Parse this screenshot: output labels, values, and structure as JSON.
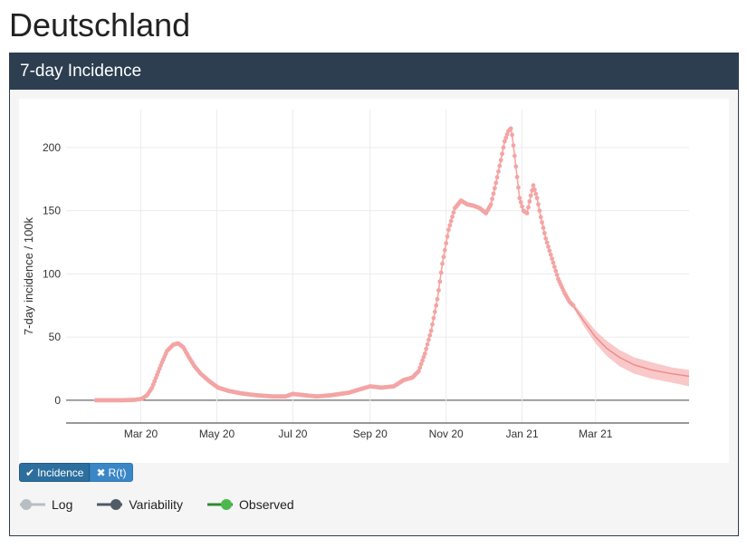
{
  "page": {
    "title": "Deutschland"
  },
  "panel": {
    "title": "7-day Incidence"
  },
  "buttons": {
    "incidence": "Incidence",
    "rt": "R(t)"
  },
  "toggles": {
    "log": "Log",
    "variability": "Variability",
    "observed": "Observed"
  },
  "colors": {
    "series": "#f4a4a4",
    "forecast_band": "#f7b6b6",
    "header": "#2c3e50",
    "toggle_off": "#b8bec4",
    "toggle_variability": "#4f5b66",
    "toggle_observed": "#2e8b2e"
  },
  "chart_data": {
    "type": "line",
    "ylabel": "7-day incidence / 100k",
    "xlabel": "",
    "ylim": [
      -18,
      230
    ],
    "yticks": [
      0,
      50,
      100,
      150,
      200
    ],
    "xlim": [
      "2020-01-01",
      "2021-05-15"
    ],
    "xticks": [
      {
        "date": "2020-03-01",
        "label": "Mar 20"
      },
      {
        "date": "2020-05-01",
        "label": "May 20"
      },
      {
        "date": "2020-07-01",
        "label": "Jul 20"
      },
      {
        "date": "2020-09-01",
        "label": "Sep 20"
      },
      {
        "date": "2020-11-01",
        "label": "Nov 20"
      },
      {
        "date": "2021-01-01",
        "label": "Jan 21"
      },
      {
        "date": "2021-03-01",
        "label": "Mar 21"
      }
    ],
    "grid": true,
    "series": [
      {
        "kind": "observed",
        "points": [
          [
            "2020-01-25",
            0
          ],
          [
            "2020-02-05",
            0
          ],
          [
            "2020-02-15",
            0
          ],
          [
            "2020-02-25",
            0.3
          ],
          [
            "2020-03-02",
            1.2
          ],
          [
            "2020-03-06",
            4
          ],
          [
            "2020-03-10",
            10
          ],
          [
            "2020-03-14",
            20
          ],
          [
            "2020-03-18",
            30
          ],
          [
            "2020-03-22",
            39
          ],
          [
            "2020-03-27",
            44
          ],
          [
            "2020-03-31",
            45
          ],
          [
            "2020-04-04",
            42
          ],
          [
            "2020-04-08",
            35
          ],
          [
            "2020-04-13",
            27
          ],
          [
            "2020-04-18",
            21
          ],
          [
            "2020-04-25",
            15
          ],
          [
            "2020-05-02",
            10
          ],
          [
            "2020-05-10",
            7.5
          ],
          [
            "2020-05-20",
            5.5
          ],
          [
            "2020-06-01",
            4
          ],
          [
            "2020-06-15",
            3
          ],
          [
            "2020-06-25",
            3
          ],
          [
            "2020-07-01",
            5
          ],
          [
            "2020-07-10",
            4
          ],
          [
            "2020-07-20",
            3
          ],
          [
            "2020-08-01",
            4
          ],
          [
            "2020-08-15",
            6
          ],
          [
            "2020-08-25",
            9
          ],
          [
            "2020-09-01",
            11
          ],
          [
            "2020-09-10",
            10
          ],
          [
            "2020-09-20",
            11
          ],
          [
            "2020-09-28",
            16
          ],
          [
            "2020-10-05",
            18
          ],
          [
            "2020-10-10",
            23
          ],
          [
            "2020-10-15",
            37
          ],
          [
            "2020-10-20",
            55
          ],
          [
            "2020-10-25",
            80
          ],
          [
            "2020-10-29",
            108
          ],
          [
            "2020-11-03",
            135
          ],
          [
            "2020-11-08",
            152
          ],
          [
            "2020-11-13",
            158
          ],
          [
            "2020-11-18",
            155
          ],
          [
            "2020-11-23",
            154
          ],
          [
            "2020-11-28",
            152
          ],
          [
            "2020-12-03",
            148
          ],
          [
            "2020-12-07",
            155
          ],
          [
            "2020-12-11",
            172
          ],
          [
            "2020-12-15",
            190
          ],
          [
            "2020-12-18",
            205
          ],
          [
            "2020-12-21",
            213
          ],
          [
            "2020-12-23",
            215
          ],
          [
            "2020-12-24",
            210
          ],
          [
            "2020-12-27",
            185
          ],
          [
            "2020-12-30",
            160
          ],
          [
            "2021-01-02",
            150
          ],
          [
            "2021-01-05",
            148
          ],
          [
            "2021-01-08",
            162
          ],
          [
            "2021-01-10",
            170
          ],
          [
            "2021-01-13",
            160
          ],
          [
            "2021-01-16",
            145
          ],
          [
            "2021-01-20",
            128
          ],
          [
            "2021-01-25",
            112
          ],
          [
            "2021-01-30",
            96
          ],
          [
            "2021-02-04",
            85
          ],
          [
            "2021-02-08",
            78
          ],
          [
            "2021-02-11",
            75
          ]
        ]
      },
      {
        "kind": "forecast",
        "points": [
          [
            "2021-02-11",
            75,
            73,
            77
          ],
          [
            "2021-02-20",
            62,
            58,
            66
          ],
          [
            "2021-03-01",
            50,
            45,
            55
          ],
          [
            "2021-03-10",
            41,
            35,
            47
          ],
          [
            "2021-03-20",
            34,
            27,
            40
          ],
          [
            "2021-04-01",
            28,
            21,
            34
          ],
          [
            "2021-04-15",
            24,
            17,
            30
          ],
          [
            "2021-05-01",
            21,
            14,
            26
          ],
          [
            "2021-05-15",
            19,
            11,
            24
          ]
        ]
      }
    ]
  }
}
